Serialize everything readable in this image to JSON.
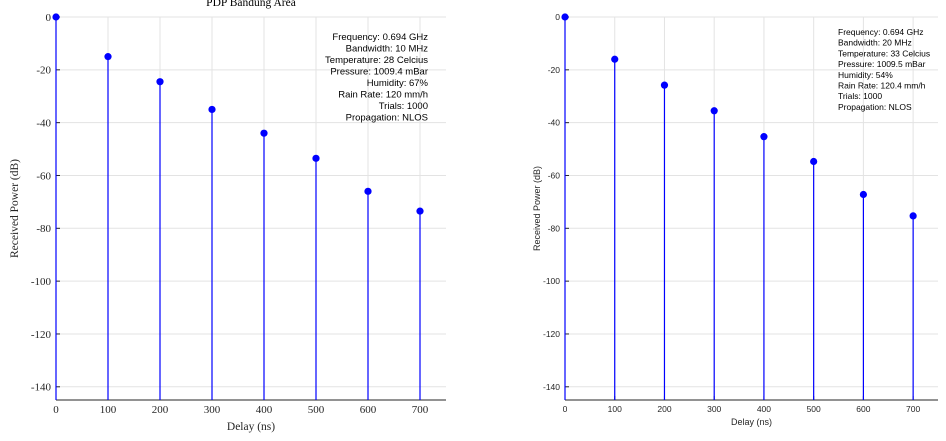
{
  "chart_data": [
    {
      "type": "stem",
      "title": "PDP Bandung Area",
      "xlabel": "Delay (ns)",
      "ylabel": "Received Power (dB)",
      "xlim": [
        0,
        750
      ],
      "ylim": [
        -145,
        0
      ],
      "xticks": [
        "0",
        "100",
        "200",
        "300",
        "400",
        "500",
        "600",
        "700"
      ],
      "yticks": [
        "0",
        "-20",
        "-40",
        "-60",
        "-80",
        "-100",
        "-120",
        "-140"
      ],
      "grid": true,
      "marker_color": "#0000ff",
      "x": [
        0,
        100,
        200,
        300,
        400,
        500,
        600,
        700
      ],
      "y": [
        0,
        -15,
        -24.5,
        -35,
        -44,
        -53.5,
        -66,
        -73.5
      ],
      "annotation_align": "right",
      "annotations": [
        "Frequency: 0.694 GHz",
        "Bandwidth: 10 MHz",
        "Temperature: 28 Celcius",
        "Pressure: 1009.4 mBar",
        "Humidity: 67%",
        "Rain Rate: 120 mm/h",
        "Trials: 1000",
        "Propagation: NLOS"
      ]
    },
    {
      "type": "stem",
      "title": "",
      "xlabel": "Delay (ns)",
      "ylabel": "Received Power (dB)",
      "xlim": [
        0,
        750
      ],
      "ylim": [
        -145,
        0
      ],
      "xticks": [
        "0",
        "100",
        "200",
        "300",
        "400",
        "500",
        "600",
        "700"
      ],
      "yticks": [
        "0",
        "-20",
        "-40",
        "-60",
        "-80",
        "-100",
        "-120",
        "-140"
      ],
      "grid": true,
      "marker_color": "#0000ff",
      "x": [
        0,
        100,
        200,
        300,
        400,
        500,
        600,
        700
      ],
      "y": [
        0,
        -16,
        -25.8,
        -35.5,
        -45.3,
        -54.7,
        -67.2,
        -75.3
      ],
      "annotation_align": "left",
      "annotations": [
        "Frequency: 0.694 GHz",
        "Bandwidth: 20 MHz",
        "Temperature: 33 Celcius",
        "Pressure: 1009.5 mBar",
        "Humidity: 54%",
        "Rain Rate: 120.4 mm/h",
        "Trials: 1000",
        "Propagation: NLOS"
      ]
    }
  ]
}
